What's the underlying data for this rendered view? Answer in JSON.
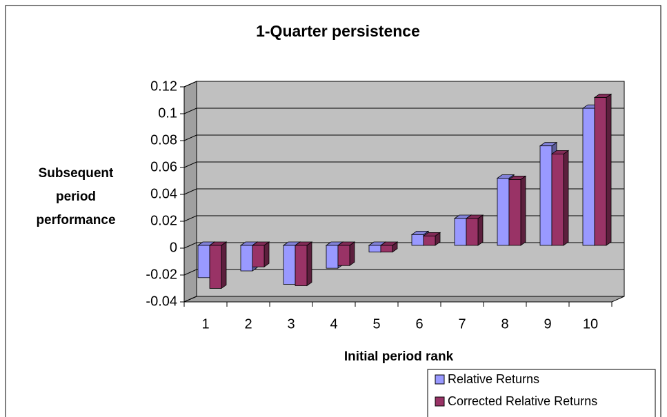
{
  "chart_data": {
    "type": "bar3d",
    "title": "1-Quarter persistence",
    "x_label": "Initial period rank",
    "y_label_lines": [
      "Subsequent",
      "period",
      "performance"
    ],
    "categories": [
      "1",
      "2",
      "3",
      "4",
      "5",
      "6",
      "7",
      "8",
      "9",
      "10"
    ],
    "series": [
      {
        "name": "Relative Returns",
        "color": "#9999ff",
        "values": [
          -0.024,
          -0.019,
          -0.029,
          -0.017,
          -0.005,
          0.008,
          0.02,
          0.05,
          0.074,
          0.102
        ]
      },
      {
        "name": "Corrected Relative Returns",
        "color": "#993366",
        "values": [
          -0.032,
          -0.016,
          -0.03,
          -0.015,
          -0.005,
          0.007,
          0.02,
          0.049,
          0.068,
          0.11
        ]
      }
    ],
    "ylim": [
      -0.04,
      0.12
    ],
    "yticks": [
      0.12,
      0.1,
      0.08,
      0.06,
      0.04,
      0.02,
      0,
      -0.02,
      -0.04
    ],
    "grid": true,
    "wall_color": "#c0c0c0",
    "legend": "bottom-right"
  }
}
